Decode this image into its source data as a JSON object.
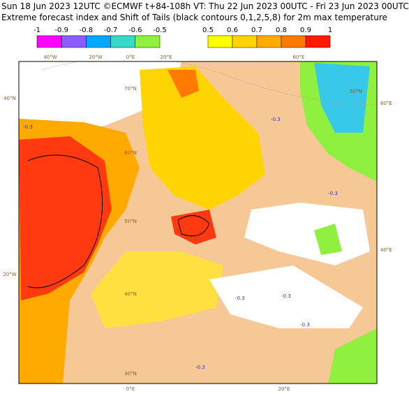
{
  "header": {
    "line1": "Sun 18 Jun 2023 12UTC ©ECMWF t+84-108h  VT: Thu 22 Jun 2023 00UTC - Fri 23 Jun 2023 00UTC",
    "line2": "Extreme forecast index and Shift of Tails (black contours 0,1,2,5,8) for 2m max temperature"
  },
  "colorbars": [
    {
      "ticks": [
        "-1",
        "-0.9",
        "-0.8",
        "-0.7",
        "-0.6",
        "-0.5"
      ],
      "colors": [
        "#ff00ff",
        "#8c5cff",
        "#00a8ff",
        "#38d8c8",
        "#90f040"
      ]
    },
    {
      "ticks": [
        "0.5",
        "0.6",
        "0.7",
        "0.8",
        "0.9",
        "1"
      ],
      "colors": [
        "#ffff00",
        "#ffd400",
        "#ffaa00",
        "#ff7a00",
        "#ff1a00"
      ]
    }
  ],
  "map": {
    "top_labels": [
      "40°W",
      "20°W",
      "0°E",
      "20°E",
      "60°E"
    ],
    "left_labels": [
      "40°N",
      "20°W"
    ],
    "right_labels": [
      "60°E",
      "40°E"
    ],
    "bottom_labels": [
      "0°E",
      "20°E"
    ],
    "grid_labels": [
      "70°N",
      "60°N",
      "50°N",
      "40°N",
      "30°N",
      "50°N"
    ],
    "contour_labels": [
      "-0.3",
      "-0.3",
      "-0.3",
      "-0.3",
      "-0.3",
      "-0.3",
      "-0.3"
    ]
  }
}
